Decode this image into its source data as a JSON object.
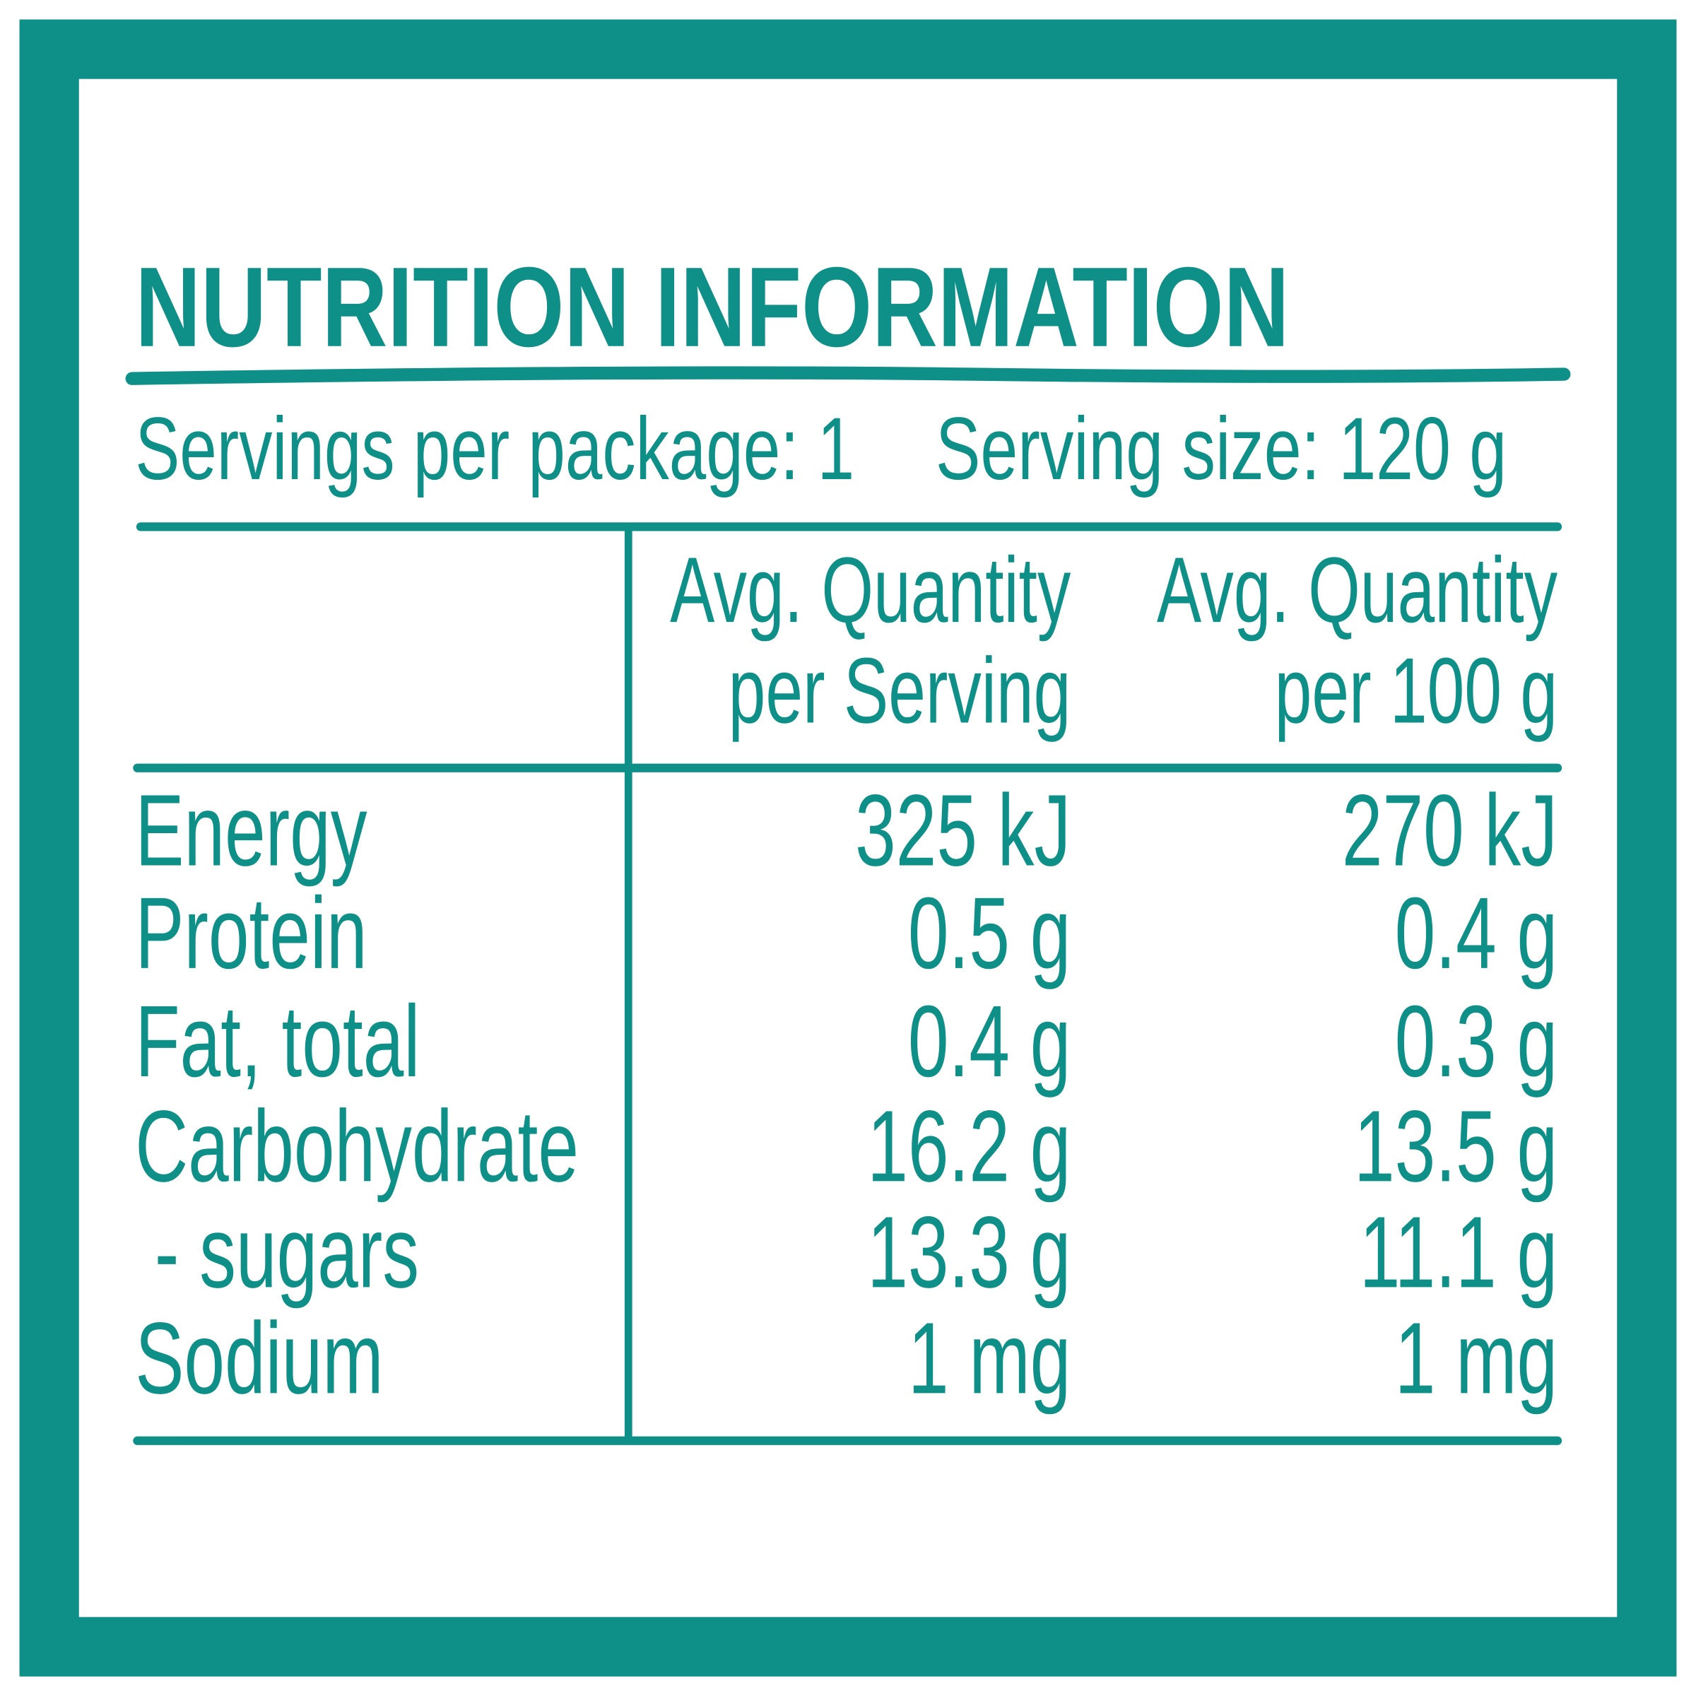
{
  "title": "NUTRITION INFORMATION",
  "servings_per_package": "Servings per package: 1",
  "serving_size": "Serving size: 120 g",
  "table": {
    "columns": [
      [
        "Avg. Quantity",
        "per Serving"
      ],
      [
        "Avg. Quantity",
        "per 100 g"
      ]
    ],
    "rows": [
      [
        "Energy",
        "325 kJ",
        "270 kJ"
      ],
      [
        "Protein",
        "0.5 g",
        "0.4 g"
      ],
      [
        "Fat, total",
        "0.4 g",
        "0.3 g"
      ],
      [
        "Carbohydrate",
        "16.2 g",
        "13.5 g"
      ],
      [
        "- sugars",
        "13.3 g",
        "11.1 g"
      ],
      [
        "Sodium",
        "1 mg",
        "1 mg"
      ]
    ]
  }
}
